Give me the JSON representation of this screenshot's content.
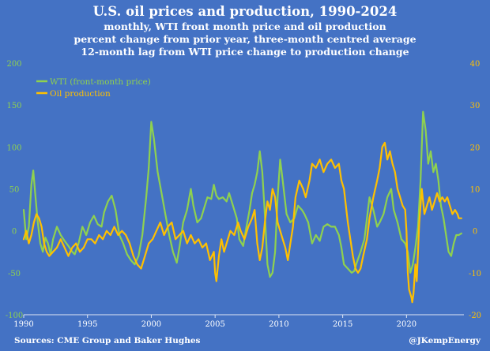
{
  "title": "U.S. oil prices and production, 1990-2024",
  "subtitle_lines": [
    "monthly, WTI front month price and oil production",
    "percent change from prior year, three-month centred average",
    "12-month lag from WTI price change to production change"
  ],
  "source": "Sources: CME Group and Baker Hughes",
  "credit": "@JKempEnergy",
  "colors": {
    "background": "#4472c4",
    "wti": "#8fd14f",
    "production": "#ffc000",
    "axis_left": "#8fd14f",
    "axis_right": "#ffc000",
    "axis_x": "#ffffff"
  },
  "chart_data": {
    "type": "line",
    "x_ticks": [
      1990,
      1995,
      2000,
      2005,
      2010,
      2015,
      2020
    ],
    "xlim": [
      1990,
      2024.5
    ],
    "left_axis": {
      "ylim": [
        -100,
        200
      ],
      "ticks": [
        -100,
        -50,
        0,
        50,
        100,
        150,
        200
      ]
    },
    "right_axis": {
      "ylim": [
        -20,
        40
      ],
      "ticks": [
        -20,
        -10,
        0,
        10,
        20,
        30,
        40
      ]
    },
    "legend_position": "top-left",
    "grid": false,
    "series": [
      {
        "name": "WTI (front-month price)",
        "axis": "left",
        "points": [
          [
            1990.0,
            25
          ],
          [
            1990.2,
            -10
          ],
          [
            1990.4,
            5
          ],
          [
            1990.6,
            55
          ],
          [
            1990.75,
            72
          ],
          [
            1990.9,
            45
          ],
          [
            1991.1,
            10
          ],
          [
            1991.3,
            -15
          ],
          [
            1991.5,
            -25
          ],
          [
            1991.7,
            -8
          ],
          [
            1991.9,
            -15
          ],
          [
            1992.1,
            -28
          ],
          [
            1992.3,
            -10
          ],
          [
            1992.6,
            5
          ],
          [
            1992.9,
            -5
          ],
          [
            1993.2,
            -12
          ],
          [
            1993.5,
            -18
          ],
          [
            1993.8,
            -25
          ],
          [
            1994.0,
            -28
          ],
          [
            1994.3,
            -15
          ],
          [
            1994.6,
            5
          ],
          [
            1994.9,
            -5
          ],
          [
            1995.2,
            10
          ],
          [
            1995.5,
            18
          ],
          [
            1995.8,
            8
          ],
          [
            1996.1,
            5
          ],
          [
            1996.3,
            22
          ],
          [
            1996.6,
            35
          ],
          [
            1996.9,
            42
          ],
          [
            1997.2,
            25
          ],
          [
            1997.5,
            -5
          ],
          [
            1997.8,
            -15
          ],
          [
            1998.1,
            -28
          ],
          [
            1998.4,
            -35
          ],
          [
            1998.7,
            -40
          ],
          [
            1999.0,
            -30
          ],
          [
            1999.3,
            -5
          ],
          [
            1999.6,
            40
          ],
          [
            1999.8,
            75
          ],
          [
            2000.0,
            130
          ],
          [
            2000.2,
            110
          ],
          [
            2000.5,
            70
          ],
          [
            2000.8,
            45
          ],
          [
            2001.1,
            20
          ],
          [
            2001.4,
            -5
          ],
          [
            2001.7,
            -25
          ],
          [
            2002.0,
            -38
          ],
          [
            2002.2,
            -20
          ],
          [
            2002.5,
            10
          ],
          [
            2002.8,
            25
          ],
          [
            2003.1,
            50
          ],
          [
            2003.3,
            30
          ],
          [
            2003.6,
            10
          ],
          [
            2003.9,
            15
          ],
          [
            2004.1,
            25
          ],
          [
            2004.4,
            40
          ],
          [
            2004.7,
            38
          ],
          [
            2004.9,
            55
          ],
          [
            2005.1,
            42
          ],
          [
            2005.3,
            38
          ],
          [
            2005.6,
            40
          ],
          [
            2005.9,
            35
          ],
          [
            2006.1,
            45
          ],
          [
            2006.4,
            30
          ],
          [
            2006.7,
            15
          ],
          [
            2006.9,
            -10
          ],
          [
            2007.2,
            -18
          ],
          [
            2007.4,
            0
          ],
          [
            2007.7,
            25
          ],
          [
            2007.9,
            45
          ],
          [
            2008.1,
            55
          ],
          [
            2008.3,
            70
          ],
          [
            2008.5,
            95
          ],
          [
            2008.7,
            70
          ],
          [
            2008.9,
            20
          ],
          [
            2009.1,
            -40
          ],
          [
            2009.3,
            -55
          ],
          [
            2009.5,
            -50
          ],
          [
            2009.7,
            -25
          ],
          [
            2009.9,
            40
          ],
          [
            2010.1,
            85
          ],
          [
            2010.3,
            60
          ],
          [
            2010.6,
            20
          ],
          [
            2010.9,
            10
          ],
          [
            2011.2,
            15
          ],
          [
            2011.5,
            30
          ],
          [
            2011.8,
            25
          ],
          [
            2012.0,
            20
          ],
          [
            2012.3,
            10
          ],
          [
            2012.6,
            -15
          ],
          [
            2012.9,
            -5
          ],
          [
            2013.2,
            -12
          ],
          [
            2013.5,
            5
          ],
          [
            2013.8,
            8
          ],
          [
            2014.1,
            5
          ],
          [
            2014.4,
            5
          ],
          [
            2014.7,
            -5
          ],
          [
            2014.9,
            -20
          ],
          [
            2015.1,
            -40
          ],
          [
            2015.4,
            -45
          ],
          [
            2015.7,
            -50
          ],
          [
            2015.9,
            -48
          ],
          [
            2016.1,
            -38
          ],
          [
            2016.4,
            -25
          ],
          [
            2016.7,
            -10
          ],
          [
            2016.9,
            15
          ],
          [
            2017.1,
            40
          ],
          [
            2017.4,
            25
          ],
          [
            2017.7,
            5
          ],
          [
            2017.9,
            10
          ],
          [
            2018.2,
            20
          ],
          [
            2018.5,
            40
          ],
          [
            2018.8,
            50
          ],
          [
            2019.0,
            25
          ],
          [
            2019.3,
            10
          ],
          [
            2019.6,
            -10
          ],
          [
            2019.9,
            -15
          ],
          [
            2020.1,
            -25
          ],
          [
            2020.3,
            -50
          ],
          [
            2020.5,
            -40
          ],
          [
            2020.7,
            -20
          ],
          [
            2020.9,
            5
          ],
          [
            2021.1,
            60
          ],
          [
            2021.3,
            142
          ],
          [
            2021.5,
            120
          ],
          [
            2021.7,
            80
          ],
          [
            2021.9,
            95
          ],
          [
            2022.1,
            70
          ],
          [
            2022.3,
            80
          ],
          [
            2022.5,
            60
          ],
          [
            2022.7,
            30
          ],
          [
            2022.9,
            15
          ],
          [
            2023.1,
            -5
          ],
          [
            2023.3,
            -25
          ],
          [
            2023.5,
            -30
          ],
          [
            2023.7,
            -15
          ],
          [
            2023.9,
            -5
          ],
          [
            2024.1,
            -5
          ],
          [
            2024.3,
            -3
          ]
        ]
      },
      {
        "name": "Oil production",
        "axis": "right",
        "points": [
          [
            1990.0,
            -2
          ],
          [
            1990.2,
            0
          ],
          [
            1990.4,
            -3
          ],
          [
            1990.6,
            -1
          ],
          [
            1990.8,
            2
          ],
          [
            1991.0,
            4
          ],
          [
            1991.2,
            3
          ],
          [
            1991.4,
            1
          ],
          [
            1991.6,
            -3
          ],
          [
            1991.8,
            -5
          ],
          [
            1992.0,
            -6
          ],
          [
            1992.3,
            -5
          ],
          [
            1992.6,
            -4
          ],
          [
            1992.9,
            -2
          ],
          [
            1993.2,
            -4
          ],
          [
            1993.5,
            -6
          ],
          [
            1993.8,
            -4
          ],
          [
            1994.1,
            -3
          ],
          [
            1994.4,
            -5
          ],
          [
            1994.7,
            -4
          ],
          [
            1995.0,
            -2
          ],
          [
            1995.3,
            -2
          ],
          [
            1995.6,
            -3
          ],
          [
            1995.9,
            -1
          ],
          [
            1996.2,
            -2
          ],
          [
            1996.5,
            0
          ],
          [
            1996.8,
            -1
          ],
          [
            1997.1,
            1
          ],
          [
            1997.4,
            -1
          ],
          [
            1997.7,
            0
          ],
          [
            1998.0,
            -1
          ],
          [
            1998.3,
            -3
          ],
          [
            1998.6,
            -6
          ],
          [
            1998.9,
            -8
          ],
          [
            1999.2,
            -9
          ],
          [
            1999.5,
            -6
          ],
          [
            1999.8,
            -3
          ],
          [
            2000.1,
            -2
          ],
          [
            2000.4,
            0
          ],
          [
            2000.7,
            2
          ],
          [
            2001.0,
            -1
          ],
          [
            2001.3,
            1
          ],
          [
            2001.6,
            2
          ],
          [
            2001.9,
            -2
          ],
          [
            2002.2,
            -1
          ],
          [
            2002.5,
            0
          ],
          [
            2002.8,
            -3
          ],
          [
            2003.1,
            -1
          ],
          [
            2003.4,
            -3
          ],
          [
            2003.7,
            -2
          ],
          [
            2004.0,
            -4
          ],
          [
            2004.3,
            -3
          ],
          [
            2004.6,
            -7
          ],
          [
            2004.9,
            -5
          ],
          [
            2005.0,
            -10
          ],
          [
            2005.1,
            -12
          ],
          [
            2005.3,
            -6
          ],
          [
            2005.5,
            -2
          ],
          [
            2005.7,
            -5
          ],
          [
            2005.9,
            -3
          ],
          [
            2006.2,
            0
          ],
          [
            2006.5,
            -1
          ],
          [
            2006.8,
            2
          ],
          [
            2007.0,
            0
          ],
          [
            2007.3,
            -2
          ],
          [
            2007.6,
            1
          ],
          [
            2007.9,
            3
          ],
          [
            2008.1,
            5
          ],
          [
            2008.3,
            -3
          ],
          [
            2008.5,
            -7
          ],
          [
            2008.7,
            -4
          ],
          [
            2008.9,
            2
          ],
          [
            2009.1,
            7
          ],
          [
            2009.3,
            5
          ],
          [
            2009.5,
            10
          ],
          [
            2009.7,
            8
          ],
          [
            2009.9,
            2
          ],
          [
            2010.1,
            0
          ],
          [
            2010.3,
            -2
          ],
          [
            2010.5,
            -4
          ],
          [
            2010.7,
            -7
          ],
          [
            2010.9,
            -3
          ],
          [
            2011.1,
            1
          ],
          [
            2011.3,
            8
          ],
          [
            2011.6,
            12
          ],
          [
            2011.9,
            10
          ],
          [
            2012.1,
            8
          ],
          [
            2012.4,
            12
          ],
          [
            2012.6,
            16
          ],
          [
            2012.9,
            15
          ],
          [
            2013.2,
            17
          ],
          [
            2013.5,
            14
          ],
          [
            2013.8,
            16
          ],
          [
            2014.1,
            17
          ],
          [
            2014.4,
            15
          ],
          [
            2014.7,
            16
          ],
          [
            2014.9,
            12
          ],
          [
            2015.1,
            10
          ],
          [
            2015.4,
            2
          ],
          [
            2015.6,
            -2
          ],
          [
            2015.8,
            -6
          ],
          [
            2016.0,
            -9
          ],
          [
            2016.2,
            -10
          ],
          [
            2016.4,
            -9
          ],
          [
            2016.6,
            -6
          ],
          [
            2016.9,
            -2
          ],
          [
            2017.1,
            3
          ],
          [
            2017.4,
            8
          ],
          [
            2017.7,
            12
          ],
          [
            2017.9,
            15
          ],
          [
            2018.1,
            20
          ],
          [
            2018.3,
            21
          ],
          [
            2018.5,
            17
          ],
          [
            2018.7,
            19
          ],
          [
            2018.9,
            16
          ],
          [
            2019.1,
            14
          ],
          [
            2019.3,
            10
          ],
          [
            2019.5,
            8
          ],
          [
            2019.7,
            6
          ],
          [
            2019.9,
            5
          ],
          [
            2020.0,
            0
          ],
          [
            2020.1,
            -10
          ],
          [
            2020.2,
            -14
          ],
          [
            2020.3,
            -15
          ],
          [
            2020.4,
            -16
          ],
          [
            2020.45,
            -17
          ],
          [
            2020.55,
            -15
          ],
          [
            2020.7,
            -8
          ],
          [
            2020.8,
            -12
          ],
          [
            2020.9,
            -5
          ],
          [
            2021.0,
            2
          ],
          [
            2021.1,
            6
          ],
          [
            2021.2,
            10
          ],
          [
            2021.4,
            4
          ],
          [
            2021.6,
            6
          ],
          [
            2021.8,
            8
          ],
          [
            2022.0,
            5
          ],
          [
            2022.2,
            7
          ],
          [
            2022.4,
            9
          ],
          [
            2022.6,
            7
          ],
          [
            2022.8,
            8
          ],
          [
            2023.0,
            7
          ],
          [
            2023.2,
            8
          ],
          [
            2023.4,
            6
          ],
          [
            2023.6,
            4
          ],
          [
            2023.8,
            5
          ],
          [
            2024.0,
            4
          ],
          [
            2024.1,
            3
          ],
          [
            2024.3,
            3
          ]
        ]
      }
    ]
  }
}
